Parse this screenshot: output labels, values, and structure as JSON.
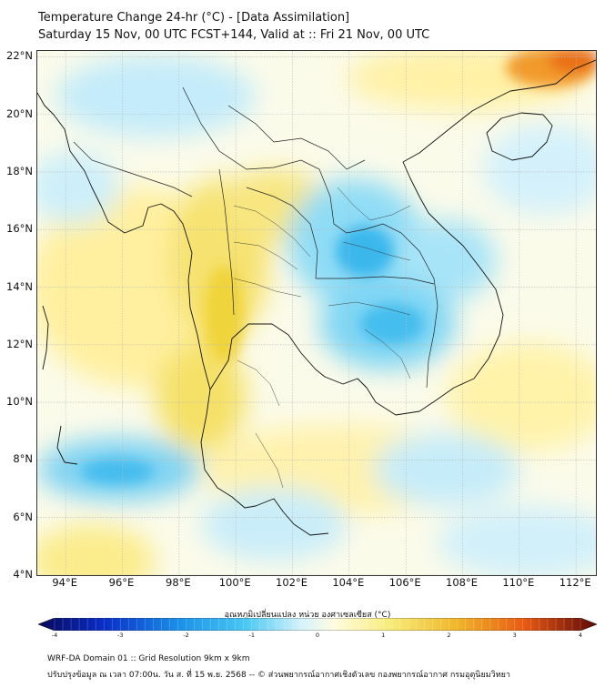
{
  "header": {
    "title_line1": "Temperature Change 24-hr (°C) - [Data Assimilation]",
    "title_line2": "Saturday 15 Nov, 00 UTC FCST+144, Valid at :: Fri 21 Nov, 00 UTC"
  },
  "map": {
    "lon_range": [
      93,
      112.7
    ],
    "lat_range": [
      4,
      22.2
    ],
    "lat_ticks": [
      "22°N",
      "20°N",
      "18°N",
      "16°N",
      "14°N",
      "12°N",
      "10°N",
      "8°N",
      "6°N",
      "4°N"
    ],
    "lon_ticks": [
      "94°E",
      "96°E",
      "98°E",
      "100°E",
      "102°E",
      "104°E",
      "106°E",
      "108°E",
      "110°E",
      "112°E"
    ],
    "lat_values": [
      22,
      20,
      18,
      16,
      14,
      12,
      10,
      8,
      6,
      4
    ],
    "lon_values": [
      94,
      96,
      98,
      100,
      102,
      104,
      106,
      108,
      110,
      112
    ]
  },
  "colorbar": {
    "title": "อุณหภูมิเปลี่ยนแปลง หน่วย องศาเซลเซียส (°C)",
    "range": [
      -4,
      4
    ],
    "tick_labels": [
      "-4",
      "-3",
      "-2",
      "-1",
      "0",
      "1",
      "2",
      "3",
      "4"
    ],
    "tick_values": [
      -4,
      -3,
      -2,
      -1,
      0,
      1,
      2,
      3,
      4
    ]
  },
  "footer": {
    "line1": "WRF-DA Domain 01 :: Grid Resolution 9km x 9km",
    "line2": "ปรับปรุงข้อมูล ณ เวลา 07:00น. วัน ส. ที่ 15 พ.ย. 2568 -- © ส่วนพยากรณ์อากาศเชิงตัวเลข กองพยากรณ์อากาศ กรมอุตุนิยมวิทยา"
  },
  "colors": {
    "warm_light": "#fff4a8",
    "warm": "#f5dc4a",
    "hot": "#f08a1c",
    "cool_light": "#c8eefa",
    "cool": "#4cc8f0",
    "cold": "#1f8fe0"
  }
}
